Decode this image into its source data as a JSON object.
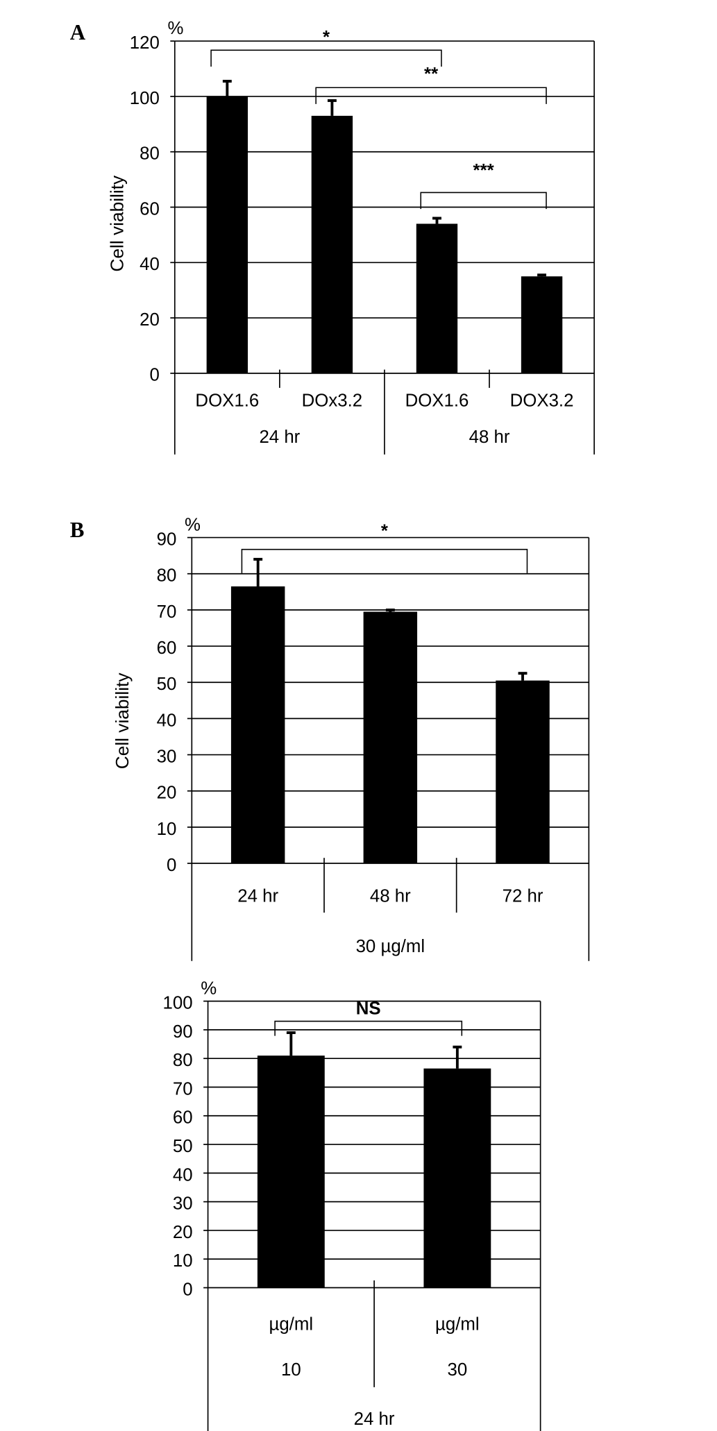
{
  "chart_data": [
    {
      "type": "bar",
      "panel": "A",
      "unit": "%",
      "ylabel": "Cell viability",
      "categories": [
        "DOX1.6",
        "DOx3.2",
        "DOX1.6",
        "DOX3.2"
      ],
      "values": [
        100,
        93,
        54,
        35
      ],
      "errors": [
        5.5,
        5.5,
        2,
        0.5
      ],
      "color": "#000000",
      "groups": [
        {
          "label": "24 hr",
          "categories": [
            0,
            1
          ]
        },
        {
          "label": "48 hr",
          "categories": [
            2,
            3
          ]
        }
      ],
      "brackets": [
        {
          "label": "*",
          "categories": [
            0,
            2
          ]
        },
        {
          "label": "**",
          "categories": [
            1,
            3
          ]
        },
        {
          "label": "***",
          "categories": [
            2,
            3
          ]
        }
      ],
      "ylim": [
        0,
        120
      ],
      "yticks": [
        0,
        20,
        40,
        60,
        80,
        100,
        120
      ],
      "grid": true
    },
    {
      "type": "bar",
      "panel": "B",
      "unit": "%",
      "ylabel": "Cell viability",
      "categories": [
        "24 hr",
        "48 hr",
        "72 hr"
      ],
      "values": [
        76.5,
        69.5,
        50.5
      ],
      "errors": [
        7.5,
        0.5,
        2
      ],
      "color": "#000000",
      "groups": [
        {
          "label": "30 µg/ml",
          "categories": [
            0,
            1,
            2
          ]
        }
      ],
      "brackets": [
        {
          "label": "*",
          "categories": [
            0,
            2
          ]
        }
      ],
      "ylim": [
        0,
        90
      ],
      "yticks": [
        0,
        10,
        20,
        30,
        40,
        50,
        60,
        70,
        80,
        90
      ],
      "grid": true
    },
    {
      "type": "bar",
      "unit": "%",
      "categories": [
        "10",
        "30"
      ],
      "category_units": [
        "µg/ml",
        "µg/ml"
      ],
      "values": [
        81,
        76.5
      ],
      "errors": [
        8,
        7.5
      ],
      "color": "#000000",
      "groups": [
        {
          "label": "24 hr",
          "categories": [
            0,
            1
          ]
        }
      ],
      "brackets": [
        {
          "label": "NS",
          "categories": [
            0,
            1
          ]
        }
      ],
      "ylim": [
        0,
        100
      ],
      "yticks": [
        0,
        10,
        20,
        30,
        40,
        50,
        60,
        70,
        80,
        90,
        100
      ],
      "grid": true
    }
  ]
}
